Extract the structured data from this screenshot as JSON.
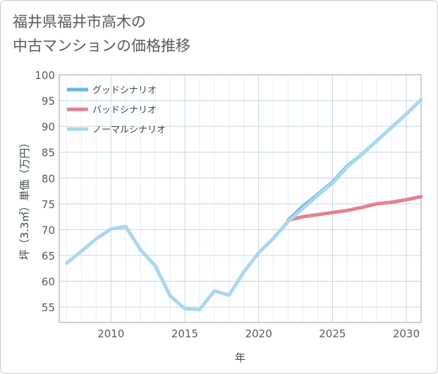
{
  "header": {
    "title_line1": "福井県福井市高木の",
    "title_line2": "中古マンションの価格推移"
  },
  "chart_data": {
    "type": "line",
    "xlabel": "年",
    "ylabel": "坪（3.3㎡）単価（万円）",
    "xlim": [
      2006.5,
      2031
    ],
    "ylim": [
      52,
      100
    ],
    "xticks": [
      2010,
      2015,
      2020,
      2025,
      2030
    ],
    "yticks": [
      55,
      60,
      65,
      70,
      75,
      80,
      85,
      90,
      95,
      100
    ],
    "grid": true,
    "legend_position": "top-left",
    "series": [
      {
        "name": "グッドシナリオ",
        "color": "#6cb4e4",
        "x": [
          2022,
          2023,
          2024,
          2025,
          2026,
          2027,
          2028,
          2029,
          2030,
          2031
        ],
        "y": [
          71.8,
          74.5,
          76.8,
          79.2,
          82.3,
          84.6,
          87.2,
          89.8,
          92.4,
          95.2
        ]
      },
      {
        "name": "バッドシナリオ",
        "color": "#e0838f",
        "x": [
          2022,
          2023,
          2024,
          2025,
          2026,
          2027,
          2028,
          2029,
          2030,
          2031
        ],
        "y": [
          71.8,
          72.5,
          72.9,
          73.3,
          73.7,
          74.3,
          75.0,
          75.3,
          75.8,
          76.4
        ]
      },
      {
        "name": "ノーマルシナリオ",
        "color": "#a9d8ef",
        "x": [
          2007,
          2008,
          2009,
          2010,
          2011,
          2012,
          2013,
          2014,
          2015,
          2016,
          2017,
          2018,
          2019,
          2020,
          2021,
          2022,
          2023,
          2024,
          2025,
          2026,
          2027,
          2028,
          2029,
          2030,
          2031
        ],
        "y": [
          63.5,
          65.8,
          68.2,
          70.1,
          70.6,
          66.1,
          63.0,
          57.2,
          54.7,
          54.5,
          58.1,
          57.3,
          61.8,
          65.5,
          68.3,
          71.6,
          74.1,
          76.6,
          79.0,
          82.1,
          84.6,
          87.2,
          89.8,
          92.4,
          95.2
        ]
      }
    ]
  }
}
